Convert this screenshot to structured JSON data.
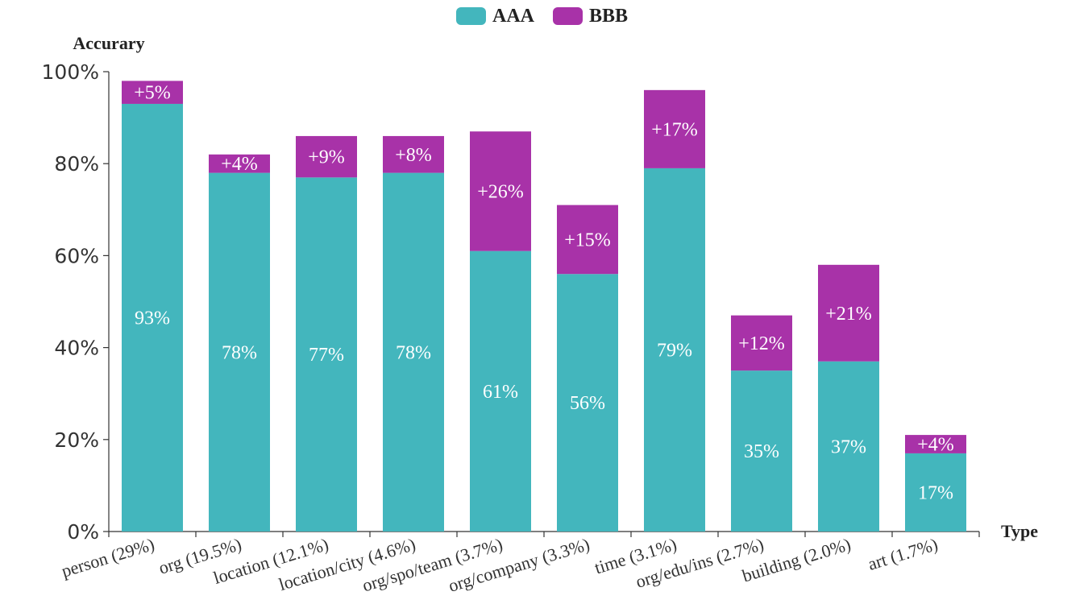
{
  "chart_data": {
    "type": "bar",
    "stacked": true,
    "title": "",
    "xlabel": "Type",
    "ylabel": "Accurary",
    "ylim": [
      0,
      100
    ],
    "yticks": [
      "0%",
      "20%",
      "40%",
      "60%",
      "80%",
      "100%"
    ],
    "legend_position": "top-center",
    "categories": [
      "person (29%)",
      "org (19.5%)",
      "location (12.1%)",
      "location/city (4.6%)",
      "org/spo/team (3.7%)",
      "org/company (3.3%)",
      "time (3.1%)",
      "org/edu/ins (2.7%)",
      "building (2.0%)",
      "art (1.7%)"
    ],
    "series": [
      {
        "name": "AAA",
        "color": "#43b6bd",
        "values": [
          93,
          78,
          77,
          78,
          61,
          56,
          79,
          35,
          37,
          17
        ],
        "labels": [
          "93%",
          "78%",
          "77%",
          "78%",
          "61%",
          "56%",
          "79%",
          "35%",
          "37%",
          "17%"
        ]
      },
      {
        "name": "BBB",
        "color": "#a832a8",
        "values": [
          5,
          4,
          9,
          8,
          26,
          15,
          17,
          12,
          21,
          4
        ],
        "labels": [
          "+5%",
          "+4%",
          "+9%",
          "+8%",
          "+26%",
          "+15%",
          "+17%",
          "+12%",
          "+21%",
          "+4%"
        ]
      }
    ]
  }
}
